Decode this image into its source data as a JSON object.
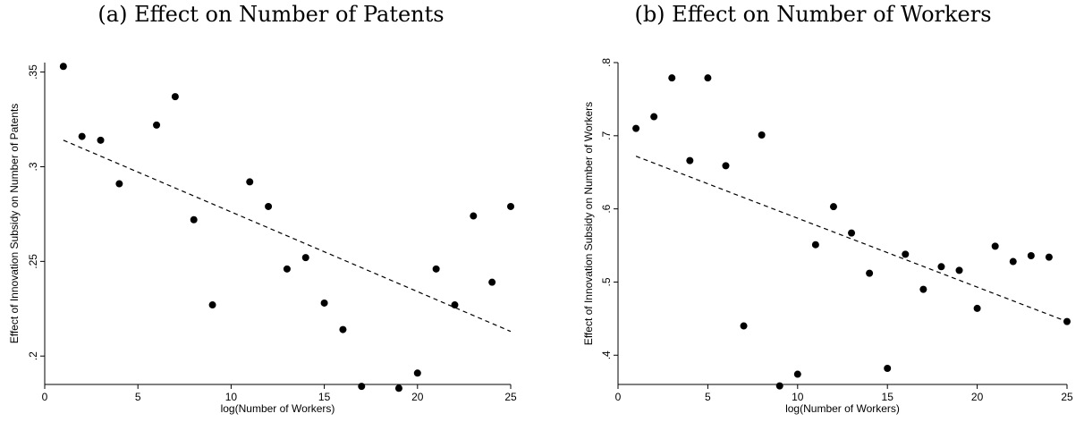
{
  "chart_data": [
    {
      "type": "scatter",
      "title": "(a) Effect on Number of Patents",
      "xlabel": "log(Number of Workers)",
      "ylabel": "Effect of Innovation Subsidy on Number of Patents",
      "xlim": [
        0,
        25
      ],
      "ylim": [
        0.185,
        0.355
      ],
      "xticks": [
        0,
        5,
        10,
        15,
        20,
        25
      ],
      "xtick_labels": [
        "0",
        "5",
        "10",
        "15",
        "20",
        "25"
      ],
      "yticks": [
        0.2,
        0.25,
        0.3,
        0.35
      ],
      "ytick_labels": [
        ".2",
        ".25",
        ".3",
        ".35"
      ],
      "grid": false,
      "points": [
        {
          "x": 1,
          "y": 0.353
        },
        {
          "x": 2,
          "y": 0.316
        },
        {
          "x": 3,
          "y": 0.314
        },
        {
          "x": 4,
          "y": 0.291
        },
        {
          "x": 6,
          "y": 0.322
        },
        {
          "x": 7,
          "y": 0.337
        },
        {
          "x": 8,
          "y": 0.272
        },
        {
          "x": 9,
          "y": 0.227
        },
        {
          "x": 11,
          "y": 0.292
        },
        {
          "x": 12,
          "y": 0.279
        },
        {
          "x": 13,
          "y": 0.246
        },
        {
          "x": 14,
          "y": 0.252
        },
        {
          "x": 15,
          "y": 0.228
        },
        {
          "x": 16,
          "y": 0.214
        },
        {
          "x": 17,
          "y": 0.184
        },
        {
          "x": 19,
          "y": 0.183
        },
        {
          "x": 20,
          "y": 0.191
        },
        {
          "x": 21,
          "y": 0.246
        },
        {
          "x": 22,
          "y": 0.227
        },
        {
          "x": 23,
          "y": 0.274
        },
        {
          "x": 24,
          "y": 0.239
        },
        {
          "x": 25,
          "y": 0.279
        }
      ],
      "fit_line": {
        "x": [
          1,
          25
        ],
        "y": [
          0.314,
          0.213
        ],
        "style": "dashed"
      }
    },
    {
      "type": "scatter",
      "title": "(b) Effect on Number of Workers",
      "xlabel": "log(Number of Workers)",
      "ylabel": "Effect of Innovation Subsidy on Number of Workers",
      "xlim": [
        0,
        25
      ],
      "ylim": [
        0.36,
        0.8
      ],
      "xticks": [
        0,
        5,
        10,
        15,
        20,
        25
      ],
      "xtick_labels": [
        "0",
        "5",
        "10",
        "15",
        "20",
        "25"
      ],
      "yticks": [
        0.4,
        0.5,
        0.6,
        0.7,
        0.8
      ],
      "ytick_labels": [
        ".4",
        ".5",
        ".6",
        ".7",
        ".8"
      ],
      "grid": false,
      "points": [
        {
          "x": 1,
          "y": 0.71
        },
        {
          "x": 2,
          "y": 0.726
        },
        {
          "x": 3,
          "y": 0.779
        },
        {
          "x": 4,
          "y": 0.666
        },
        {
          "x": 5,
          "y": 0.779
        },
        {
          "x": 6,
          "y": 0.659
        },
        {
          "x": 7,
          "y": 0.44
        },
        {
          "x": 8,
          "y": 0.701
        },
        {
          "x": 9,
          "y": 0.358
        },
        {
          "x": 10,
          "y": 0.374
        },
        {
          "x": 11,
          "y": 0.551
        },
        {
          "x": 12,
          "y": 0.603
        },
        {
          "x": 13,
          "y": 0.567
        },
        {
          "x": 14,
          "y": 0.512
        },
        {
          "x": 15,
          "y": 0.382
        },
        {
          "x": 16,
          "y": 0.538
        },
        {
          "x": 17,
          "y": 0.49
        },
        {
          "x": 18,
          "y": 0.521
        },
        {
          "x": 19,
          "y": 0.516
        },
        {
          "x": 20,
          "y": 0.464
        },
        {
          "x": 21,
          "y": 0.549
        },
        {
          "x": 22,
          "y": 0.528
        },
        {
          "x": 23,
          "y": 0.536
        },
        {
          "x": 24,
          "y": 0.534
        },
        {
          "x": 25,
          "y": 0.446
        }
      ],
      "fit_line": {
        "x": [
          1,
          25
        ],
        "y": [
          0.672,
          0.446
        ],
        "style": "dashed"
      }
    }
  ]
}
